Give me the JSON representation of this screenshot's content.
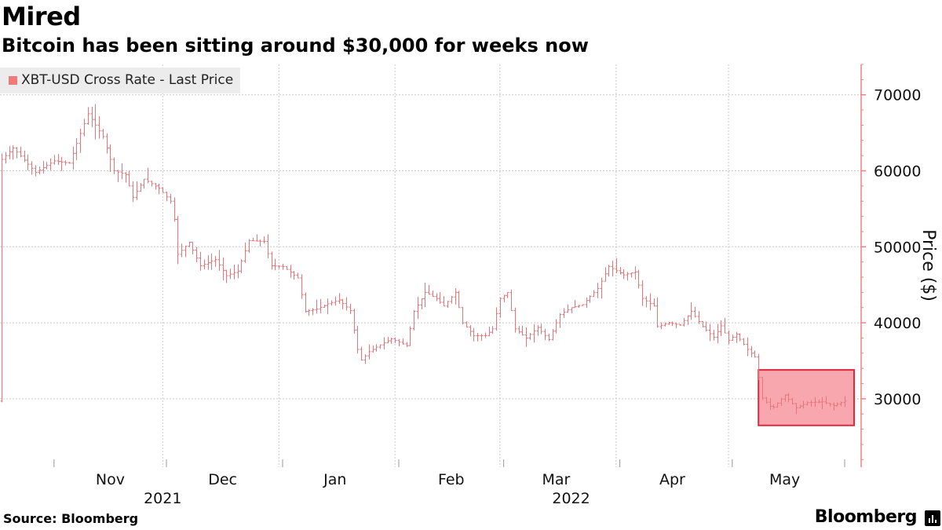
{
  "header": {
    "title": "Mired",
    "subtitle": "Bitcoin has been sitting around $30,000 for weeks now"
  },
  "footer": {
    "source": "Source: Bloomberg",
    "brand": "Bloomberg"
  },
  "colors": {
    "series": "#e8757a",
    "highlight_fill": "#f7a7ad",
    "highlight_stroke": "#e0283a",
    "axis": "#f08080",
    "grid": "#c8c8c8"
  },
  "chart_data": {
    "type": "line",
    "title": "Mired",
    "subtitle": "Bitcoin has been sitting around $30,000 for weeks now",
    "ylabel": "Price ($)",
    "ylim": [
      21000,
      74000
    ],
    "yticks": [
      30000,
      40000,
      50000,
      60000,
      70000
    ],
    "ytick_labels": [
      "30000",
      "40000",
      "50000",
      "60000",
      "70000"
    ],
    "grid": true,
    "legend_position": "top-left",
    "series": [
      {
        "name": "XBT-USD Cross Rate - Last Price",
        "price_style": "high-low bars",
        "x_start": "2021-10-18",
        "x_end": "2022-05-31",
        "anchors": [
          [
            "2021-10-18",
            61500
          ],
          [
            "2021-10-21",
            63000
          ],
          [
            "2021-10-27",
            59800
          ],
          [
            "2021-11-01",
            61300
          ],
          [
            "2021-11-05",
            61000
          ],
          [
            "2021-11-10",
            67500
          ],
          [
            "2021-11-14",
            64500
          ],
          [
            "2021-11-17",
            60000
          ],
          [
            "2021-11-20",
            59500
          ],
          [
            "2021-11-22",
            56500
          ],
          [
            "2021-11-25",
            58900
          ],
          [
            "2021-11-29",
            57700
          ],
          [
            "2021-12-02",
            56000
          ],
          [
            "2021-12-03",
            53600
          ],
          [
            "2021-12-04",
            49000
          ],
          [
            "2021-12-07",
            50600
          ],
          [
            "2021-12-10",
            47500
          ],
          [
            "2021-12-14",
            48300
          ],
          [
            "2021-12-17",
            46200
          ],
          [
            "2021-12-20",
            46800
          ],
          [
            "2021-12-23",
            50800
          ],
          [
            "2021-12-27",
            50700
          ],
          [
            "2021-12-29",
            47500
          ],
          [
            "2022-01-01",
            47400
          ],
          [
            "2022-01-05",
            45900
          ],
          [
            "2022-01-07",
            41500
          ],
          [
            "2022-01-10",
            41800
          ],
          [
            "2022-01-13",
            42500
          ],
          [
            "2022-01-16",
            43000
          ],
          [
            "2022-01-19",
            41600
          ],
          [
            "2022-01-21",
            36500
          ],
          [
            "2022-01-22",
            35100
          ],
          [
            "2022-01-24",
            36200
          ],
          [
            "2022-01-27",
            37100
          ],
          [
            "2022-01-30",
            37900
          ],
          [
            "2022-02-03",
            37000
          ],
          [
            "2022-02-05",
            41500
          ],
          [
            "2022-02-08",
            44000
          ],
          [
            "2022-02-11",
            43200
          ],
          [
            "2022-02-13",
            42200
          ],
          [
            "2022-02-16",
            44000
          ],
          [
            "2022-02-18",
            40000
          ],
          [
            "2022-02-21",
            38300
          ],
          [
            "2022-02-24",
            38300
          ],
          [
            "2022-02-26",
            39200
          ],
          [
            "2022-02-28",
            43200
          ],
          [
            "2022-03-02",
            44000
          ],
          [
            "2022-03-04",
            39200
          ],
          [
            "2022-03-07",
            38000
          ],
          [
            "2022-03-10",
            39400
          ],
          [
            "2022-03-13",
            37800
          ],
          [
            "2022-03-16",
            41100
          ],
          [
            "2022-03-19",
            42000
          ],
          [
            "2022-03-22",
            42400
          ],
          [
            "2022-03-26",
            44500
          ],
          [
            "2022-03-29",
            47400
          ],
          [
            "2022-04-02",
            46300
          ],
          [
            "2022-04-05",
            46700
          ],
          [
            "2022-04-07",
            43200
          ],
          [
            "2022-04-10",
            42200
          ],
          [
            "2022-04-11",
            39500
          ],
          [
            "2022-04-14",
            40000
          ],
          [
            "2022-04-17",
            39700
          ],
          [
            "2022-04-20",
            41500
          ],
          [
            "2022-04-23",
            39500
          ],
          [
            "2022-04-26",
            38100
          ],
          [
            "2022-04-28",
            39600
          ],
          [
            "2022-04-30",
            37700
          ],
          [
            "2022-05-02",
            38500
          ],
          [
            "2022-05-05",
            36500
          ],
          [
            "2022-05-07",
            35500
          ],
          [
            "2022-05-09",
            30100
          ],
          [
            "2022-05-11",
            29000
          ],
          [
            "2022-05-12",
            28900
          ],
          [
            "2022-05-15",
            30500
          ],
          [
            "2022-05-18",
            28800
          ],
          [
            "2022-05-21",
            29500
          ],
          [
            "2022-05-25",
            29600
          ],
          [
            "2022-05-28",
            29100
          ],
          [
            "2022-05-31",
            29700
          ]
        ]
      }
    ],
    "highlight_box": {
      "x_from": "2022-05-08",
      "x_to": "2022-05-31",
      "y_from": 26500,
      "y_to": 33800
    },
    "x_month_labels": [
      {
        "label": "Nov",
        "date": "2021-11-16"
      },
      {
        "label": "Dec",
        "date": "2021-12-16"
      },
      {
        "label": "Jan",
        "date": "2022-01-15"
      },
      {
        "label": "Feb",
        "date": "2022-02-15"
      },
      {
        "label": "Mar",
        "date": "2022-03-15"
      },
      {
        "label": "Apr",
        "date": "2022-04-15"
      },
      {
        "label": "May",
        "date": "2022-05-15"
      }
    ],
    "x_year_labels": [
      {
        "label": "2021",
        "date": "2021-11-30"
      },
      {
        "label": "2022",
        "date": "2022-03-19"
      }
    ],
    "x_gridlines": [
      "2021-11-30",
      "2021-12-31",
      "2022-01-31",
      "2022-02-28",
      "2022-03-31",
      "2022-04-30"
    ],
    "x_ticks": [
      "2021-11-01",
      "2021-12-01",
      "2022-01-01",
      "2022-02-01",
      "2022-03-01",
      "2022-04-01",
      "2022-05-01",
      "2022-05-31"
    ]
  }
}
